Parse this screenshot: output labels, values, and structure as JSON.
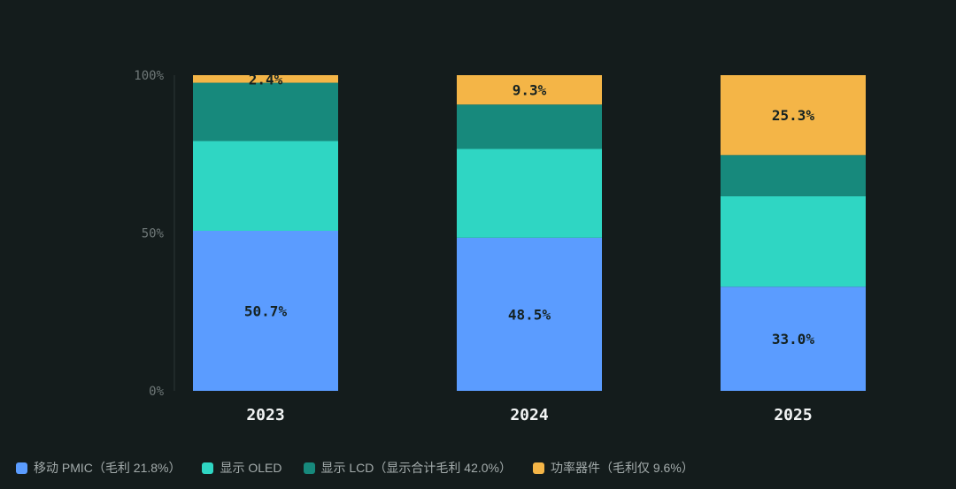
{
  "chart_data": {
    "type": "bar",
    "stacked": true,
    "categories": [
      "2023",
      "2024",
      "2025"
    ],
    "y_ticks": [
      "0%",
      "50%",
      "100%"
    ],
    "ylim": [
      0,
      100
    ],
    "grid": false,
    "legend_position": "bottom-left",
    "series": [
      {
        "name": "移动 PMIC（毛利 21.8%）",
        "color": "#5b9cff",
        "values": [
          50.7,
          48.5,
          33.0
        ],
        "labels": [
          "50.7%",
          "48.5%",
          "33.0%"
        ]
      },
      {
        "name": "显示 OLED",
        "color": "#2fd6c3",
        "values": [
          28.5,
          28.2,
          28.7
        ],
        "labels": [
          "",
          "",
          ""
        ]
      },
      {
        "name": "显示 LCD（显示合计毛利 42.0%）",
        "color": "#17897c",
        "values": [
          18.4,
          14.0,
          13.0
        ],
        "labels": [
          "",
          "",
          ""
        ]
      },
      {
        "name": "功率器件（毛利仅 9.6%）",
        "color": "#f4b547",
        "values": [
          2.4,
          9.3,
          25.3
        ],
        "labels": [
          "2.4%",
          "9.3%",
          "25.3%"
        ]
      }
    ]
  }
}
